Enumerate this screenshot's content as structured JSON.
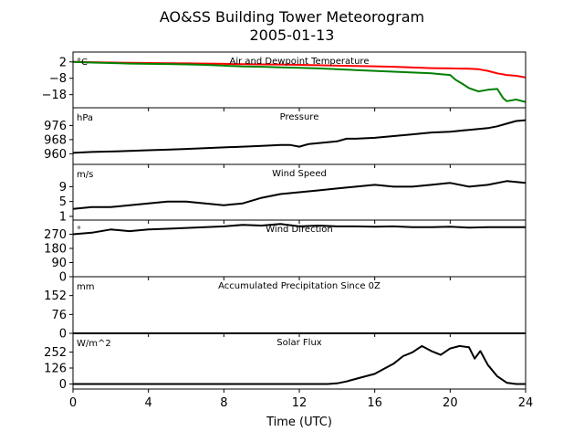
{
  "figure": {
    "title_line1": "AO&SS Building Tower Meteorogram",
    "title_line2": "2005-01-13",
    "xlabel": "Time (UTC)"
  },
  "chart_data": [
    {
      "type": "line",
      "title": "Air and Dewpoint Temperature",
      "unit_label": "°C",
      "ylim": [
        -26,
        8
      ],
      "yticks": [
        2,
        -8,
        -18
      ],
      "xlim": [
        0,
        24
      ],
      "series": [
        {
          "color": "#ff0000",
          "x": [
            0,
            1,
            2,
            3,
            4,
            5,
            6,
            7,
            8,
            9,
            10,
            11,
            12,
            13,
            14,
            15,
            16,
            17,
            18,
            19,
            20,
            21,
            21.5,
            22,
            22.5,
            23,
            23.5,
            24
          ],
          "y": [
            2,
            1.8,
            1.6,
            1.4,
            1.3,
            1.2,
            1.1,
            1.0,
            0.8,
            0.6,
            0.5,
            0.4,
            0.2,
            0,
            -0.3,
            -0.5,
            -0.7,
            -1,
            -1.4,
            -1.8,
            -2.0,
            -2.2,
            -2.5,
            -3.5,
            -5,
            -6,
            -6.5,
            -7.5
          ]
        },
        {
          "color": "#008000",
          "x": [
            0,
            1,
            2,
            3,
            4,
            5,
            6,
            7,
            8,
            9,
            10,
            11,
            12,
            13,
            14,
            15,
            16,
            17,
            18,
            19,
            19.5,
            20,
            20.3,
            20.6,
            21,
            21.5,
            22,
            22.5,
            22.8,
            23,
            23.5,
            24
          ],
          "y": [
            2,
            1.6,
            1.3,
            1,
            0.8,
            0.7,
            0.5,
            0.2,
            -0.3,
            -0.8,
            -1.0,
            -1.3,
            -1.6,
            -2,
            -2.5,
            -3,
            -3.5,
            -4,
            -4.5,
            -5,
            -5.5,
            -6,
            -9,
            -11,
            -14,
            -16,
            -15,
            -14.5,
            -20,
            -22,
            -21,
            -22.5
          ]
        }
      ]
    },
    {
      "type": "line",
      "title": "Pressure",
      "unit_label": "hPa",
      "ylim": [
        954,
        986
      ],
      "yticks": [
        976,
        968,
        960
      ],
      "xlim": [
        0,
        24
      ],
      "series": [
        {
          "color": "#000000",
          "x": [
            0,
            1,
            2,
            3,
            4,
            5,
            6,
            7,
            8,
            9,
            10,
            11,
            11.5,
            12,
            12.5,
            13,
            14,
            14.5,
            15,
            16,
            17,
            18,
            19,
            20,
            21,
            22,
            22.5,
            23,
            23.5,
            24
          ],
          "y": [
            960.5,
            961,
            961.3,
            961.6,
            962,
            962.3,
            962.7,
            963.2,
            963.6,
            964,
            964.5,
            965,
            965,
            964,
            965.5,
            966,
            967,
            968.5,
            968.5,
            969,
            970,
            971,
            972,
            972.5,
            973.5,
            974.5,
            975.5,
            977,
            978.5,
            979
          ]
        }
      ]
    },
    {
      "type": "line",
      "title": "Wind Speed",
      "unit_label": "m/s",
      "ylim": [
        0,
        15
      ],
      "yticks": [
        9,
        5,
        1
      ],
      "xlim": [
        0,
        24
      ],
      "series": [
        {
          "color": "#000000",
          "x": [
            0,
            1,
            2,
            3,
            4,
            5,
            6,
            7,
            8,
            9,
            10,
            11,
            12,
            13,
            14,
            15,
            16,
            17,
            18,
            19,
            20,
            21,
            22,
            23,
            24
          ],
          "y": [
            3,
            3.5,
            3.5,
            4,
            4.5,
            5,
            5,
            4.5,
            4,
            4.5,
            6,
            7,
            7.5,
            8,
            8.5,
            9,
            9.5,
            9,
            9,
            9.5,
            10,
            9,
            9.5,
            10.5,
            10
          ]
        }
      ]
    },
    {
      "type": "line",
      "title": "Wind Direction",
      "unit_label": "°",
      "ylim": [
        0,
        360
      ],
      "yticks": [
        270,
        180,
        90,
        0
      ],
      "xlim": [
        0,
        24
      ],
      "series": [
        {
          "color": "#000000",
          "x": [
            0,
            1,
            2,
            3,
            4,
            5,
            6,
            7,
            8,
            9,
            10,
            11,
            12,
            13,
            14,
            15,
            16,
            17,
            18,
            19,
            20,
            21,
            22,
            23,
            24
          ],
          "y": [
            270,
            280,
            300,
            290,
            300,
            305,
            310,
            315,
            320,
            330,
            325,
            335,
            320,
            325,
            320,
            320,
            318,
            320,
            315,
            315,
            318,
            312,
            315,
            315,
            315
          ]
        }
      ]
    },
    {
      "type": "line",
      "title": "Accumulated Precipitation Since 0Z",
      "unit_label": "mm",
      "ylim": [
        0,
        228
      ],
      "yticks": [
        152,
        76,
        0
      ],
      "xlim": [
        0,
        24
      ],
      "series": [
        {
          "color": "#000000",
          "x": [
            0,
            24
          ],
          "y": [
            0,
            0
          ]
        }
      ]
    },
    {
      "type": "line",
      "title": "Solar Flux",
      "unit_label": "W/m^2",
      "ylim": [
        -40,
        400
      ],
      "yticks": [
        252,
        126,
        0
      ],
      "xlim": [
        0,
        24
      ],
      "xticks": [
        0,
        4,
        8,
        12,
        16,
        20,
        24
      ],
      "series": [
        {
          "color": "#000000",
          "x": [
            0,
            13.5,
            14,
            14.5,
            15,
            15.5,
            16,
            16.5,
            17,
            17.5,
            18,
            18.5,
            19,
            19.5,
            20,
            20.5,
            21,
            21.3,
            21.6,
            22,
            22.5,
            23,
            23.5,
            24
          ],
          "y": [
            0,
            0,
            5,
            20,
            40,
            60,
            80,
            120,
            160,
            220,
            250,
            300,
            260,
            230,
            280,
            300,
            290,
            200,
            260,
            150,
            60,
            10,
            0,
            0
          ]
        }
      ]
    }
  ]
}
